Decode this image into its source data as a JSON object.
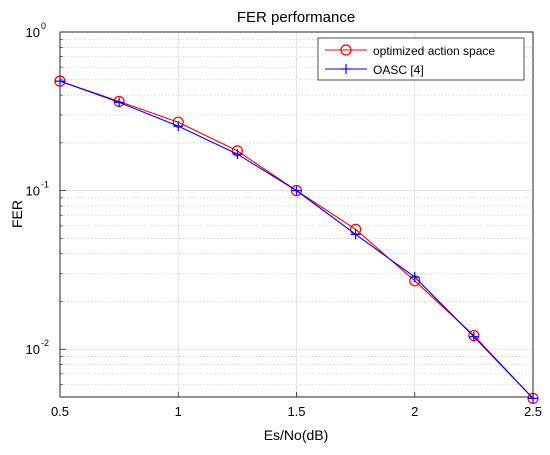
{
  "chart_data": {
    "type": "line",
    "title": "FER performance",
    "xlabel": "Es/No(dB)",
    "ylabel": "FER",
    "xlim": [
      0.5,
      2.5
    ],
    "ylim": [
      0.005,
      1
    ],
    "y_scale": "log",
    "grid": true,
    "legend_position": "top-right",
    "x_ticks": [
      "0.5",
      "1",
      "1.5",
      "2",
      "2.5"
    ],
    "y_ticks": [
      {
        "base": "10",
        "exp": "0",
        "value": 1
      },
      {
        "base": "10",
        "exp": "-1",
        "value": 0.1
      },
      {
        "base": "10",
        "exp": "-2",
        "value": 0.01
      }
    ],
    "x": [
      0.5,
      0.75,
      1.0,
      1.25,
      1.5,
      1.75,
      2.0,
      2.25,
      2.5
    ],
    "series": [
      {
        "name": "optimized action space",
        "color": "#ff0000",
        "marker": "circle",
        "values": [
          0.49,
          0.365,
          0.27,
          0.178,
          0.1,
          0.057,
          0.027,
          0.0122,
          0.0049
        ]
      },
      {
        "name": "OASC [4]",
        "color": "#0000ff",
        "marker": "plus",
        "values": [
          0.49,
          0.36,
          0.255,
          0.17,
          0.1,
          0.053,
          0.0285,
          0.012,
          0.0049
        ]
      }
    ]
  }
}
